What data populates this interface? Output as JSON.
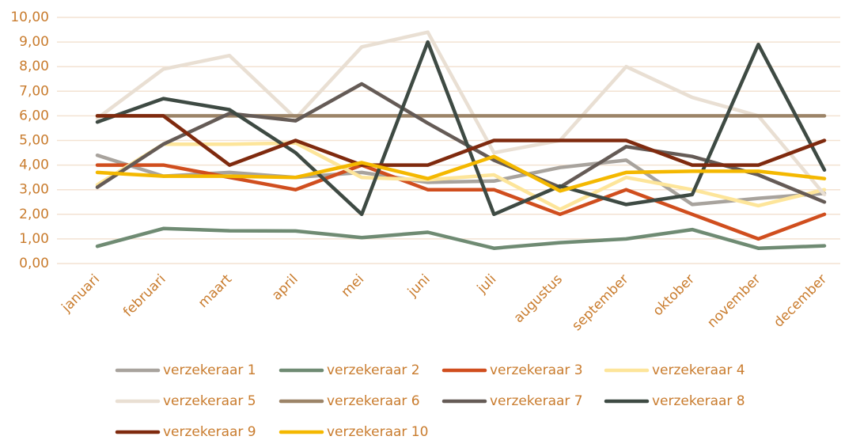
{
  "chart_data": {
    "type": "line",
    "categories": [
      "januari",
      "februari",
      "maart",
      "april",
      "mei",
      "juni",
      "juli",
      "augustus",
      "september",
      "oktober",
      "november",
      "december"
    ],
    "series": [
      {
        "name": "verzekeraar 1",
        "color": "#a8a39d",
        "values": [
          4.4,
          3.55,
          3.7,
          3.5,
          3.7,
          3.3,
          3.35,
          3.9,
          4.2,
          2.4,
          2.65,
          2.85
        ]
      },
      {
        "name": "verzekeraar 2",
        "color": "#6f8b73",
        "values": [
          0.7,
          1.42,
          1.33,
          1.32,
          1.05,
          1.27,
          0.62,
          0.85,
          1.0,
          1.38,
          0.62,
          0.72
        ]
      },
      {
        "name": "verzekeraar 3",
        "color": "#d04e1e",
        "values": [
          4.0,
          4.0,
          3.5,
          3.0,
          4.0,
          3.0,
          3.0,
          2.0,
          3.0,
          2.0,
          1.0,
          2.0
        ]
      },
      {
        "name": "verzekeraar 4",
        "color": "#fde59a",
        "values": [
          3.2,
          4.85,
          4.85,
          4.9,
          3.5,
          3.4,
          3.6,
          2.2,
          3.5,
          3.0,
          2.35,
          3.0
        ]
      },
      {
        "name": "verzekeraar 5",
        "color": "#e9dfd3",
        "values": [
          5.9,
          7.9,
          8.45,
          5.9,
          8.8,
          9.4,
          4.5,
          5.0,
          8.0,
          6.75,
          6.0,
          2.8
        ]
      },
      {
        "name": "verzekeraar 6",
        "color": "#9c8468",
        "values": [
          6,
          6,
          6,
          6,
          6,
          6,
          6,
          6,
          6,
          6,
          6,
          6
        ]
      },
      {
        "name": "verzekeraar 7",
        "color": "#655b56",
        "values": [
          3.1,
          4.85,
          6.1,
          5.8,
          7.3,
          5.7,
          4.2,
          3.1,
          4.75,
          4.35,
          3.6,
          2.5
        ]
      },
      {
        "name": "verzekeraar 8",
        "color": "#3e4a43",
        "values": [
          5.75,
          6.7,
          6.25,
          4.5,
          2.0,
          9.0,
          2.0,
          3.15,
          2.4,
          2.8,
          8.9,
          3.8
        ]
      },
      {
        "name": "verzekeraar 9",
        "color": "#7f2a0e",
        "values": [
          6,
          6,
          4,
          5,
          4,
          4,
          5,
          5,
          5,
          4,
          4,
          5
        ]
      },
      {
        "name": "verzekeraar 10",
        "color": "#f4b800",
        "values": [
          3.7,
          3.55,
          3.55,
          3.5,
          4.1,
          3.45,
          4.35,
          2.95,
          3.7,
          3.75,
          3.75,
          3.45
        ]
      }
    ],
    "ylim": [
      0,
      10
    ],
    "yticks": [
      {
        "value": 0,
        "label": "0,00"
      },
      {
        "value": 1,
        "label": "1,00"
      },
      {
        "value": 2,
        "label": "2,00"
      },
      {
        "value": 3,
        "label": "3,00"
      },
      {
        "value": 4,
        "label": "4,00"
      },
      {
        "value": 5,
        "label": "5,00"
      },
      {
        "value": 6,
        "label": "6,00"
      },
      {
        "value": 7,
        "label": "7,00"
      },
      {
        "value": 8,
        "label": "8,00"
      },
      {
        "value": 9,
        "label": "9,00"
      },
      {
        "value": 10,
        "label": "10,00"
      }
    ],
    "grid": true,
    "legend": "bottom"
  }
}
